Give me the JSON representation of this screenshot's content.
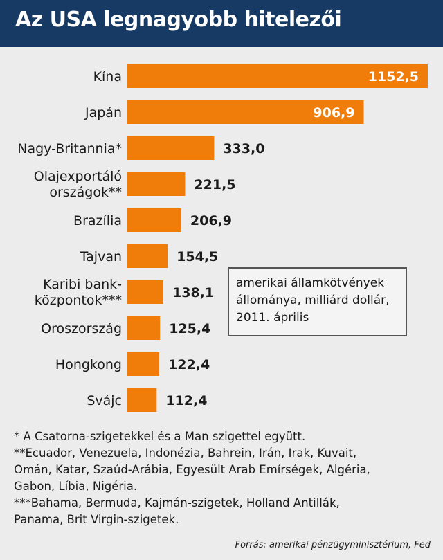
{
  "header": {
    "title": "Az USA legnagyobb hitelezői"
  },
  "legend": {
    "lines": [
      "amerikai államkötvények",
      "állománya, milliárd dollár,",
      "2011. április"
    ]
  },
  "footnotes": {
    "lines": [
      "* A Csatorna-szigetekkel és a Man szigettel együtt.",
      "**Ecuador, Venezuela, Indonézia, Bahrein, Irán, Irak, Kuvait,",
      "Omán, Katar, Szaúd-Arábia, Egyesült Arab Emírségek, Algéria,",
      "Gabon, Líbia, Nigéria.",
      "***Bahama, Bermuda, Kajmán-szigetek, Holland Antillák,",
      "Panama, Brit Virgin-szigetek."
    ]
  },
  "source": "Forrás: amerikai pénzügyminisztérium, Fed",
  "colors": {
    "bar": "#f07d0a",
    "header": "#163a63",
    "background": "#ececec"
  },
  "chart_data": {
    "type": "bar",
    "orientation": "horizontal",
    "title": "Az USA legnagyobb hitelezői",
    "categories": [
      [
        "Kína"
      ],
      [
        "Japán"
      ],
      [
        "Nagy-Britannia*"
      ],
      [
        "Olajexportáló",
        "országok**"
      ],
      [
        "Brazília"
      ],
      [
        "Tajvan"
      ],
      [
        "Karibi bank-",
        "központok***"
      ],
      [
        "Oroszország"
      ],
      [
        "Hongkong"
      ],
      [
        "Svájc"
      ]
    ],
    "values": [
      1152.5,
      906.9,
      333.0,
      221.5,
      206.9,
      154.5,
      138.1,
      125.4,
      122.4,
      112.4
    ],
    "value_labels": [
      "1152,5",
      "906,9",
      "333,0",
      "221,5",
      "206,9",
      "154,5",
      "138,1",
      "125,4",
      "122,4",
      "112,4"
    ],
    "unit": "amerikai államkötvények állománya, milliárd dollár, 2011. április",
    "xlim": [
      0,
      1152.5
    ],
    "grid": false,
    "legend": "none"
  }
}
